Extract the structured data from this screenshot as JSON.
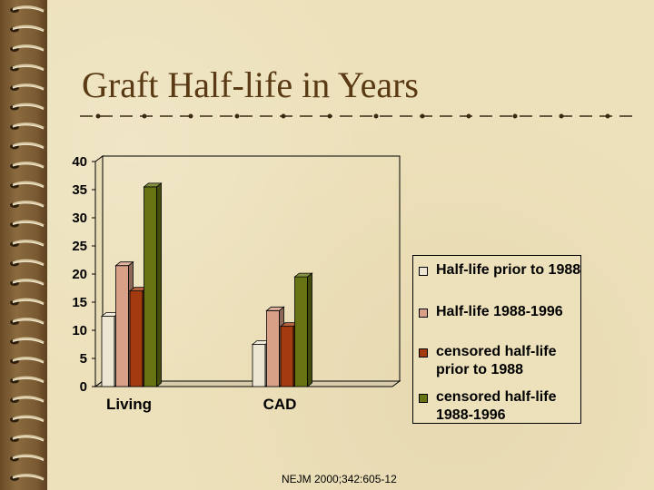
{
  "slide": {
    "title": "Graft Half-life in Years",
    "source": "NEJM 2000;342:605-12"
  },
  "colors": {
    "background": "#ede1bb",
    "title": "#5a3a14"
  },
  "chart_data": {
    "type": "bar",
    "categories": [
      "Living",
      "CAD"
    ],
    "series": [
      {
        "name": "Half-life prior to 1988",
        "values": [
          12.5,
          7.5
        ],
        "color": "#ede6d2"
      },
      {
        "name": "Half-life 1988-1996",
        "values": [
          21.5,
          13.5
        ],
        "color": "#d9a088"
      },
      {
        "name": "censored half-life prior to 1988",
        "values": [
          17,
          10.7
        ],
        "color": "#a33a10"
      },
      {
        "name": "censored half-life 1988-1996",
        "values": [
          35.5,
          19.5
        ],
        "color": "#687414"
      }
    ],
    "yticks": [
      0,
      5,
      10,
      15,
      20,
      25,
      30,
      35,
      40
    ],
    "ylim": [
      0,
      40
    ],
    "title": "",
    "xlabel": "",
    "ylabel": "",
    "grid": false,
    "legend": "right",
    "style": "3d"
  }
}
